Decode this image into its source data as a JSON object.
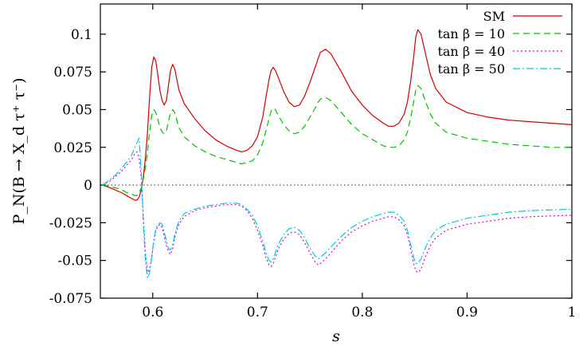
{
  "chart_data": {
    "type": "line",
    "xlabel": "s",
    "ylabel": "P_N(B → X_d τ⁺ τ⁻)",
    "xlim": [
      0.55,
      1.0
    ],
    "ylim": [
      -0.075,
      0.12
    ],
    "x_ticks": [
      0.6,
      0.7,
      0.8,
      0.9,
      1.0
    ],
    "x_tick_labels": [
      "0.6",
      "0.7",
      "0.8",
      "0.9",
      "1"
    ],
    "y_ticks": [
      -0.075,
      -0.05,
      -0.025,
      0,
      0.025,
      0.05,
      0.075,
      0.1
    ],
    "y_tick_labels": [
      "-0.075",
      "-0.05",
      "-0.025",
      "0",
      "0.025",
      "0.05",
      "0.075",
      "0.1"
    ],
    "zero_line": true,
    "grid": false,
    "legend_position": "top-right",
    "series": [
      {
        "name": "SM",
        "color": "#d00000",
        "dash": "solid",
        "x": [
          0.552,
          0.56,
          0.57,
          0.575,
          0.58,
          0.583,
          0.585,
          0.587,
          0.589,
          0.591,
          0.593,
          0.595,
          0.597,
          0.599,
          0.601,
          0.603,
          0.605,
          0.607,
          0.609,
          0.611,
          0.613,
          0.615,
          0.617,
          0.619,
          0.621,
          0.623,
          0.625,
          0.63,
          0.64,
          0.65,
          0.66,
          0.67,
          0.68,
          0.685,
          0.69,
          0.695,
          0.7,
          0.705,
          0.708,
          0.711,
          0.713,
          0.715,
          0.717,
          0.72,
          0.725,
          0.73,
          0.735,
          0.74,
          0.745,
          0.75,
          0.755,
          0.758,
          0.76,
          0.765,
          0.77,
          0.78,
          0.79,
          0.8,
          0.81,
          0.82,
          0.825,
          0.83,
          0.835,
          0.84,
          0.843,
          0.846,
          0.849,
          0.851,
          0.853,
          0.856,
          0.86,
          0.865,
          0.87,
          0.88,
          0.9,
          0.92,
          0.94,
          0.96,
          0.98,
          1.0
        ],
        "values": [
          0.0,
          -0.002,
          -0.005,
          -0.007,
          -0.009,
          -0.01,
          -0.01,
          -0.008,
          -0.003,
          0.005,
          0.018,
          0.035,
          0.058,
          0.078,
          0.085,
          0.082,
          0.072,
          0.062,
          0.056,
          0.053,
          0.056,
          0.066,
          0.076,
          0.08,
          0.077,
          0.07,
          0.063,
          0.054,
          0.044,
          0.036,
          0.03,
          0.026,
          0.023,
          0.022,
          0.023,
          0.026,
          0.032,
          0.045,
          0.058,
          0.07,
          0.076,
          0.078,
          0.076,
          0.071,
          0.062,
          0.055,
          0.052,
          0.053,
          0.059,
          0.068,
          0.078,
          0.084,
          0.088,
          0.09,
          0.087,
          0.075,
          0.062,
          0.053,
          0.046,
          0.041,
          0.039,
          0.039,
          0.041,
          0.047,
          0.055,
          0.068,
          0.085,
          0.098,
          0.103,
          0.1,
          0.088,
          0.073,
          0.064,
          0.055,
          0.048,
          0.045,
          0.043,
          0.042,
          0.041,
          0.04
        ]
      },
      {
        "name": "tan β = 10",
        "color": "#00c000",
        "dash": "8,5",
        "x": [
          0.552,
          0.56,
          0.57,
          0.575,
          0.58,
          0.583,
          0.585,
          0.587,
          0.589,
          0.591,
          0.593,
          0.595,
          0.597,
          0.599,
          0.601,
          0.603,
          0.605,
          0.607,
          0.609,
          0.611,
          0.613,
          0.615,
          0.617,
          0.619,
          0.621,
          0.623,
          0.625,
          0.63,
          0.64,
          0.65,
          0.66,
          0.67,
          0.68,
          0.685,
          0.69,
          0.695,
          0.7,
          0.705,
          0.708,
          0.711,
          0.713,
          0.715,
          0.717,
          0.72,
          0.725,
          0.73,
          0.735,
          0.74,
          0.745,
          0.75,
          0.755,
          0.758,
          0.76,
          0.765,
          0.77,
          0.78,
          0.79,
          0.8,
          0.81,
          0.82,
          0.825,
          0.83,
          0.835,
          0.84,
          0.843,
          0.846,
          0.849,
          0.851,
          0.853,
          0.856,
          0.86,
          0.865,
          0.87,
          0.88,
          0.9,
          0.92,
          0.94,
          0.96,
          0.98,
          1.0
        ],
        "values": [
          0.0,
          -0.001,
          -0.003,
          -0.005,
          -0.006,
          -0.007,
          -0.007,
          -0.005,
          -0.002,
          0.004,
          0.012,
          0.022,
          0.035,
          0.046,
          0.05,
          0.048,
          0.043,
          0.038,
          0.035,
          0.034,
          0.036,
          0.042,
          0.048,
          0.05,
          0.048,
          0.043,
          0.038,
          0.032,
          0.026,
          0.022,
          0.019,
          0.017,
          0.015,
          0.014,
          0.015,
          0.016,
          0.02,
          0.028,
          0.036,
          0.044,
          0.049,
          0.051,
          0.05,
          0.046,
          0.04,
          0.036,
          0.034,
          0.035,
          0.039,
          0.045,
          0.051,
          0.055,
          0.057,
          0.058,
          0.056,
          0.048,
          0.04,
          0.034,
          0.03,
          0.026,
          0.025,
          0.025,
          0.026,
          0.03,
          0.035,
          0.044,
          0.055,
          0.063,
          0.066,
          0.064,
          0.056,
          0.047,
          0.041,
          0.035,
          0.031,
          0.029,
          0.027,
          0.026,
          0.025,
          0.025
        ]
      },
      {
        "name": "tan β = 40",
        "color": "#e000e0",
        "dash": "2,3",
        "x": [
          0.552,
          0.56,
          0.565,
          0.57,
          0.575,
          0.58,
          0.583,
          0.585,
          0.587,
          0.589,
          0.591,
          0.593,
          0.595,
          0.597,
          0.599,
          0.601,
          0.603,
          0.605,
          0.607,
          0.609,
          0.611,
          0.613,
          0.615,
          0.617,
          0.619,
          0.621,
          0.623,
          0.625,
          0.63,
          0.64,
          0.65,
          0.66,
          0.67,
          0.68,
          0.685,
          0.69,
          0.695,
          0.7,
          0.705,
          0.708,
          0.711,
          0.713,
          0.715,
          0.717,
          0.72,
          0.725,
          0.73,
          0.735,
          0.74,
          0.745,
          0.75,
          0.755,
          0.758,
          0.76,
          0.765,
          0.77,
          0.78,
          0.79,
          0.8,
          0.81,
          0.82,
          0.825,
          0.83,
          0.835,
          0.84,
          0.843,
          0.846,
          0.849,
          0.851,
          0.853,
          0.856,
          0.86,
          0.865,
          0.87,
          0.88,
          0.9,
          0.92,
          0.94,
          0.96,
          0.98,
          1.0
        ],
        "values": [
          0.0,
          0.003,
          0.006,
          0.009,
          0.013,
          0.017,
          0.021,
          0.022,
          0.018,
          0.005,
          -0.02,
          -0.045,
          -0.058,
          -0.056,
          -0.048,
          -0.038,
          -0.03,
          -0.027,
          -0.026,
          -0.028,
          -0.034,
          -0.04,
          -0.044,
          -0.046,
          -0.042,
          -0.035,
          -0.03,
          -0.026,
          -0.021,
          -0.017,
          -0.015,
          -0.014,
          -0.013,
          -0.013,
          -0.014,
          -0.017,
          -0.022,
          -0.03,
          -0.04,
          -0.048,
          -0.053,
          -0.054,
          -0.052,
          -0.048,
          -0.042,
          -0.036,
          -0.032,
          -0.031,
          -0.033,
          -0.038,
          -0.045,
          -0.051,
          -0.053,
          -0.052,
          -0.049,
          -0.045,
          -0.037,
          -0.031,
          -0.027,
          -0.024,
          -0.022,
          -0.021,
          -0.021,
          -0.023,
          -0.027,
          -0.033,
          -0.042,
          -0.052,
          -0.057,
          -0.058,
          -0.056,
          -0.048,
          -0.04,
          -0.035,
          -0.03,
          -0.026,
          -0.024,
          -0.022,
          -0.021,
          -0.0205,
          -0.02
        ]
      },
      {
        "name": "tan β = 50",
        "color": "#00c8e0",
        "dash": "9,3,2,3",
        "x": [
          0.552,
          0.56,
          0.565,
          0.57,
          0.575,
          0.58,
          0.583,
          0.585,
          0.587,
          0.589,
          0.591,
          0.593,
          0.595,
          0.597,
          0.599,
          0.601,
          0.603,
          0.605,
          0.607,
          0.609,
          0.611,
          0.613,
          0.615,
          0.617,
          0.619,
          0.621,
          0.623,
          0.625,
          0.63,
          0.64,
          0.65,
          0.66,
          0.67,
          0.68,
          0.685,
          0.69,
          0.695,
          0.7,
          0.705,
          0.708,
          0.711,
          0.713,
          0.715,
          0.717,
          0.72,
          0.725,
          0.73,
          0.735,
          0.74,
          0.745,
          0.75,
          0.755,
          0.758,
          0.76,
          0.765,
          0.77,
          0.78,
          0.79,
          0.8,
          0.81,
          0.82,
          0.825,
          0.83,
          0.835,
          0.84,
          0.843,
          0.846,
          0.849,
          0.851,
          0.853,
          0.856,
          0.86,
          0.865,
          0.87,
          0.88,
          0.9,
          0.92,
          0.94,
          0.96,
          0.98,
          1.0
        ],
        "values": [
          0.0,
          0.004,
          0.007,
          0.011,
          0.015,
          0.02,
          0.025,
          0.028,
          0.031,
          0.01,
          -0.025,
          -0.05,
          -0.062,
          -0.058,
          -0.048,
          -0.036,
          -0.029,
          -0.026,
          -0.025,
          -0.026,
          -0.031,
          -0.037,
          -0.042,
          -0.043,
          -0.04,
          -0.033,
          -0.028,
          -0.024,
          -0.019,
          -0.016,
          -0.014,
          -0.013,
          -0.012,
          -0.012,
          -0.013,
          -0.016,
          -0.02,
          -0.027,
          -0.037,
          -0.045,
          -0.05,
          -0.051,
          -0.049,
          -0.045,
          -0.039,
          -0.033,
          -0.029,
          -0.028,
          -0.03,
          -0.035,
          -0.042,
          -0.047,
          -0.049,
          -0.048,
          -0.045,
          -0.041,
          -0.034,
          -0.028,
          -0.024,
          -0.021,
          -0.019,
          -0.018,
          -0.018,
          -0.02,
          -0.024,
          -0.03,
          -0.039,
          -0.048,
          -0.052,
          -0.052,
          -0.049,
          -0.042,
          -0.035,
          -0.03,
          -0.026,
          -0.022,
          -0.02,
          -0.018,
          -0.017,
          -0.0165,
          -0.016
        ]
      }
    ]
  }
}
